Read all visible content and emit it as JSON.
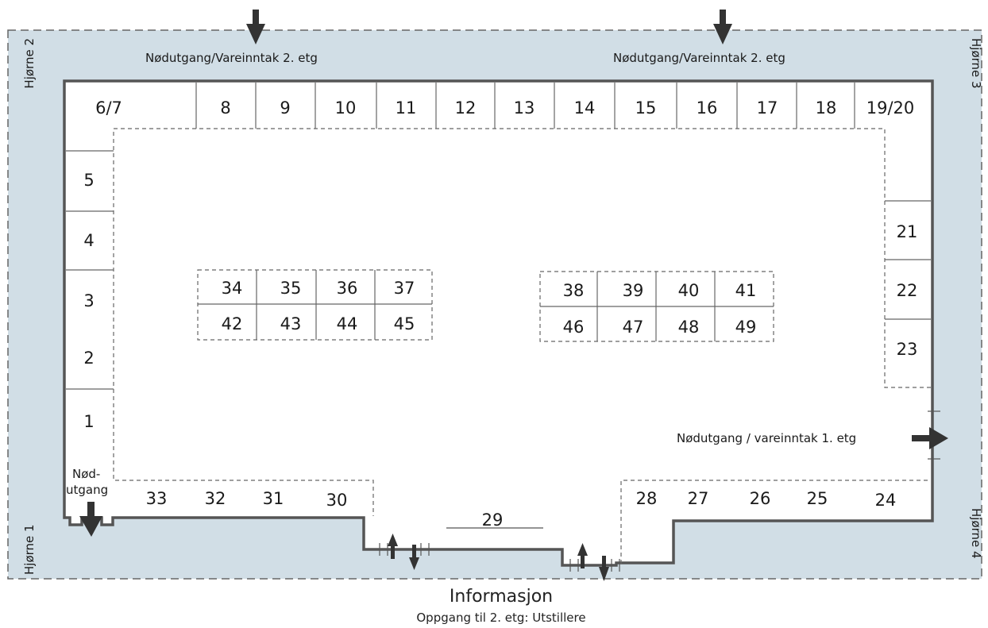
{
  "colors": {
    "outside": "#d1dee6",
    "wall": "#555555",
    "dashed": "#666666",
    "arrow": "#333333",
    "floor": "#ffffff"
  },
  "corners": {
    "c1": "Hjørne 1",
    "c2": "Hjørne 2",
    "c3": "Hjørne 3",
    "c4": "Hjørne 4"
  },
  "exits": {
    "top_left": "Nødutgang/Vareinntak 2. etg",
    "top_right": "Nødutgang/Vareinntak 2. etg",
    "right": "Nødutgang / vareinntak 1. etg",
    "bottom_left_line1": "Nød-",
    "bottom_left_line2": "utgang"
  },
  "booths": {
    "b1": "1",
    "b2": "2",
    "b3": "3",
    "b4": "4",
    "b5": "5",
    "b6_7": "6/7",
    "b8": "8",
    "b9": "9",
    "b10": "10",
    "b11": "11",
    "b12": "12",
    "b13": "13",
    "b14": "14",
    "b15": "15",
    "b16": "16",
    "b17": "17",
    "b18": "18",
    "b19_20": "19/20",
    "b21": "21",
    "b22": "22",
    "b23": "23",
    "b24": "24",
    "b25": "25",
    "b26": "26",
    "b27": "27",
    "b28": "28",
    "b29": "29",
    "b30": "30",
    "b31": "31",
    "b32": "32",
    "b33": "33",
    "b34": "34",
    "b35": "35",
    "b36": "36",
    "b37": "37",
    "b38": "38",
    "b39": "39",
    "b40": "40",
    "b41": "41",
    "b42": "42",
    "b43": "43",
    "b44": "44",
    "b45": "45",
    "b46": "46",
    "b47": "47",
    "b48": "48",
    "b49": "49"
  },
  "footer": {
    "info": "Informasjon",
    "stairs": "Oppgang til 2. etg: Utstillere"
  }
}
